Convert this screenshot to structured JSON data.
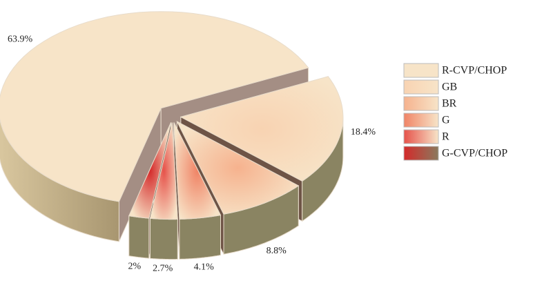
{
  "chart_data": {
    "type": "pie",
    "categories": [
      "R-CVP/CHOP",
      "GB",
      "BR",
      "G",
      "R",
      "G-CVP/CHOP"
    ],
    "values": [
      63.9,
      18.4,
      8.8,
      4.1,
      2.7,
      2
    ],
    "value_labels": [
      "63.9%",
      "18.4%",
      "8.8%",
      "4.1%",
      "2.7%",
      "2%"
    ],
    "colors": [
      "#f7e4c8",
      "#f8d3b2",
      "#f6b28e",
      "#f08466",
      "#e6524a",
      "#d42a2a"
    ],
    "legend": "right"
  }
}
